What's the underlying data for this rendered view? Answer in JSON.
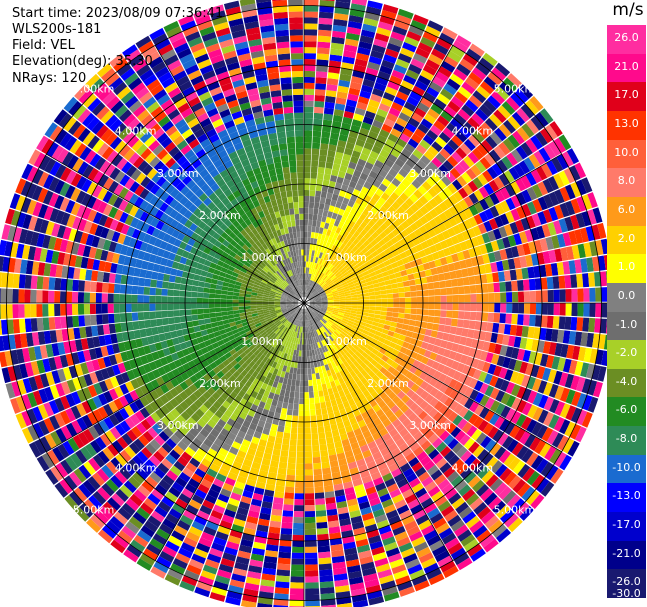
{
  "header": {
    "start_time": "Start time: 2023/08/09 07:36:41",
    "instrument": "WLS200s-181",
    "field": "Field: VEL",
    "elevation": "Elevation(deg): 35.30",
    "nrays": "NRays: 120"
  },
  "colorbar": {
    "unit": "m/s",
    "ticks": [
      "26.0",
      "21.0",
      "17.0",
      "13.0",
      "10.0",
      "8.0",
      "6.0",
      "2.0",
      "1.0",
      "0.0",
      "-1.0",
      "-2.0",
      "-4.0",
      "-6.0",
      "-8.0",
      "-10.0",
      "-13.0",
      "-17.0",
      "-21.0",
      "-26.0",
      "-30.0"
    ],
    "colors": [
      "#ff2da0",
      "#ff0a8c",
      "#e0001a",
      "#ff3300",
      "#ff5f3a",
      "#ff7a6a",
      "#ff9a1a",
      "#ffd000",
      "#ffff00",
      "#808080",
      "#6e6e6e",
      "#a8d028",
      "#6b8e23",
      "#228b22",
      "#2e8b57",
      "#1a6bd0",
      "#0000ff",
      "#0000cd",
      "#00008b",
      "#191970"
    ]
  },
  "chart_data": {
    "type": "heatmap",
    "plot": "ppi",
    "field": "VEL",
    "units": "m/s",
    "n_rays": 120,
    "elevation_deg": 35.3,
    "range_rings_km": [
      1.0,
      2.0,
      3.0,
      4.0,
      5.0
    ],
    "ring_labels": [
      "1.00km",
      "2.00km",
      "3.00km",
      "4.00km",
      "5.00km"
    ],
    "max_range_km": 5.1,
    "gate_km": 0.1,
    "valid_range_km": 3.2,
    "azimuth_spokes_deg": [
      0,
      30,
      60,
      90,
      120,
      150,
      180,
      210,
      240,
      270,
      300,
      330
    ],
    "color_bounds": [
      30,
      26,
      21,
      17,
      13,
      10,
      8,
      6,
      2,
      1,
      0,
      -1,
      -2,
      -4,
      -6,
      -8,
      -10,
      -13,
      -17,
      -21,
      -26,
      -30
    ],
    "wind_pattern": {
      "description": "positive velocities to the east/northeast, negative to the west/southwest, noisy beyond 3.2 km",
      "max_positive_ms": 10,
      "max_negative_ms": -8
    }
  }
}
